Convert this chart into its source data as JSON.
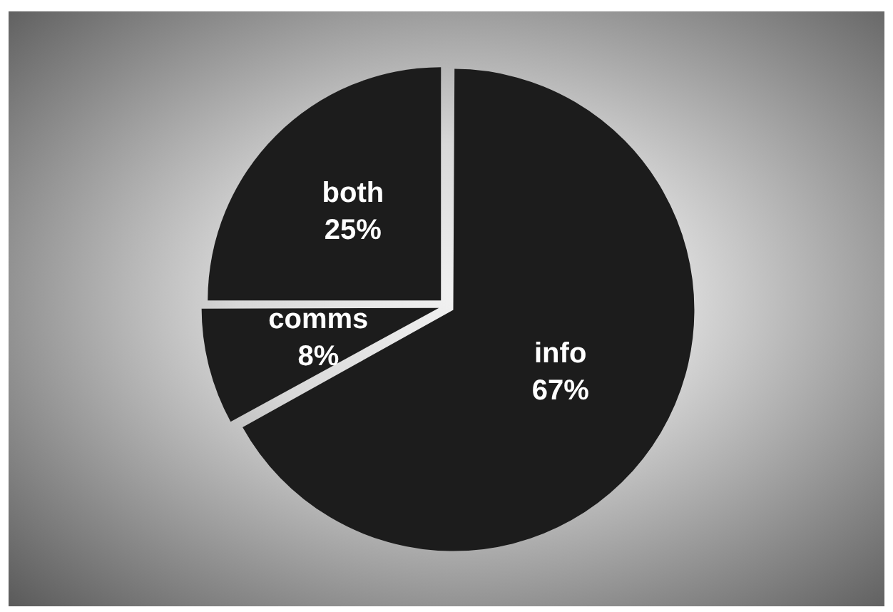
{
  "chart_data": {
    "type": "pie",
    "categories": [
      "info",
      "comms",
      "both"
    ],
    "values": [
      67,
      8,
      25
    ],
    "colors": [
      "#1c1c1c",
      "#1c1c1c",
      "#1c1c1c"
    ],
    "value_labels": [
      "67%",
      "8%",
      "25%"
    ],
    "legend": false
  }
}
